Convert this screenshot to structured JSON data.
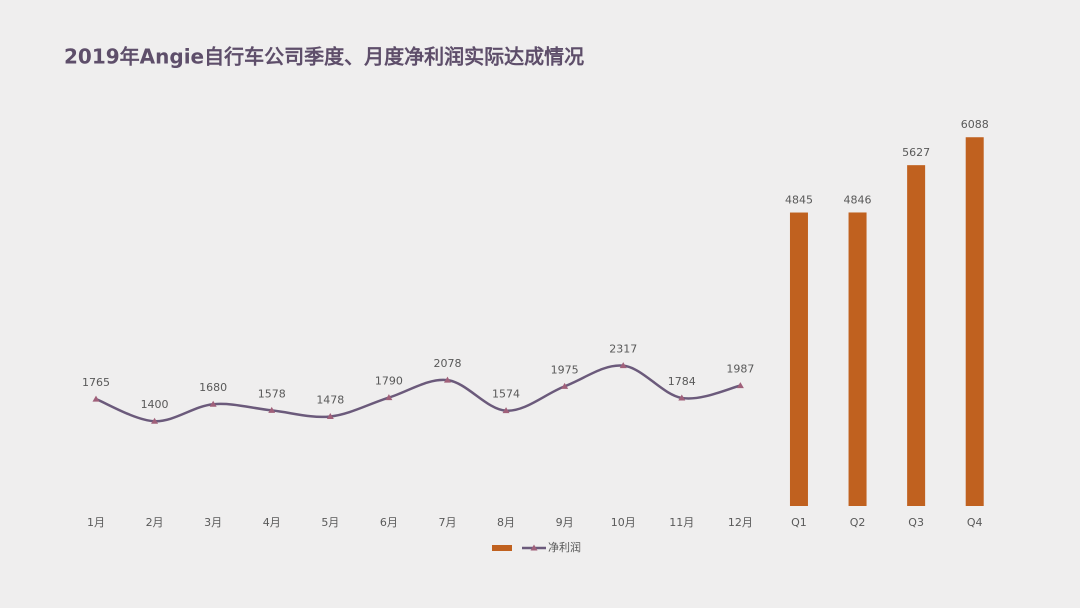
{
  "chart_data": {
    "type": "combo",
    "title": "2019年Angie自行车公司季度、月度净利润实际达成情况",
    "categories": [
      "1月",
      "2月",
      "3月",
      "4月",
      "5月",
      "6月",
      "7月",
      "8月",
      "9月",
      "10月",
      "11月",
      "12月",
      "Q1",
      "Q2",
      "Q3",
      "Q4"
    ],
    "series": [
      {
        "name": "净利润",
        "type": "line",
        "color": "#6b5a7b",
        "marker_color": "#a0607a",
        "values": [
          1765,
          1400,
          1680,
          1578,
          1478,
          1790,
          2078,
          1574,
          1975,
          2317,
          1784,
          1987,
          null,
          null,
          null,
          null
        ]
      },
      {
        "type": "bar",
        "color": "#c0611f",
        "values": [
          null,
          null,
          null,
          null,
          null,
          null,
          null,
          null,
          null,
          null,
          null,
          null,
          4845,
          4846,
          5627,
          6088
        ]
      }
    ],
    "ylim": [
      0,
      7000
    ],
    "grid": false,
    "legend": "bottom"
  }
}
